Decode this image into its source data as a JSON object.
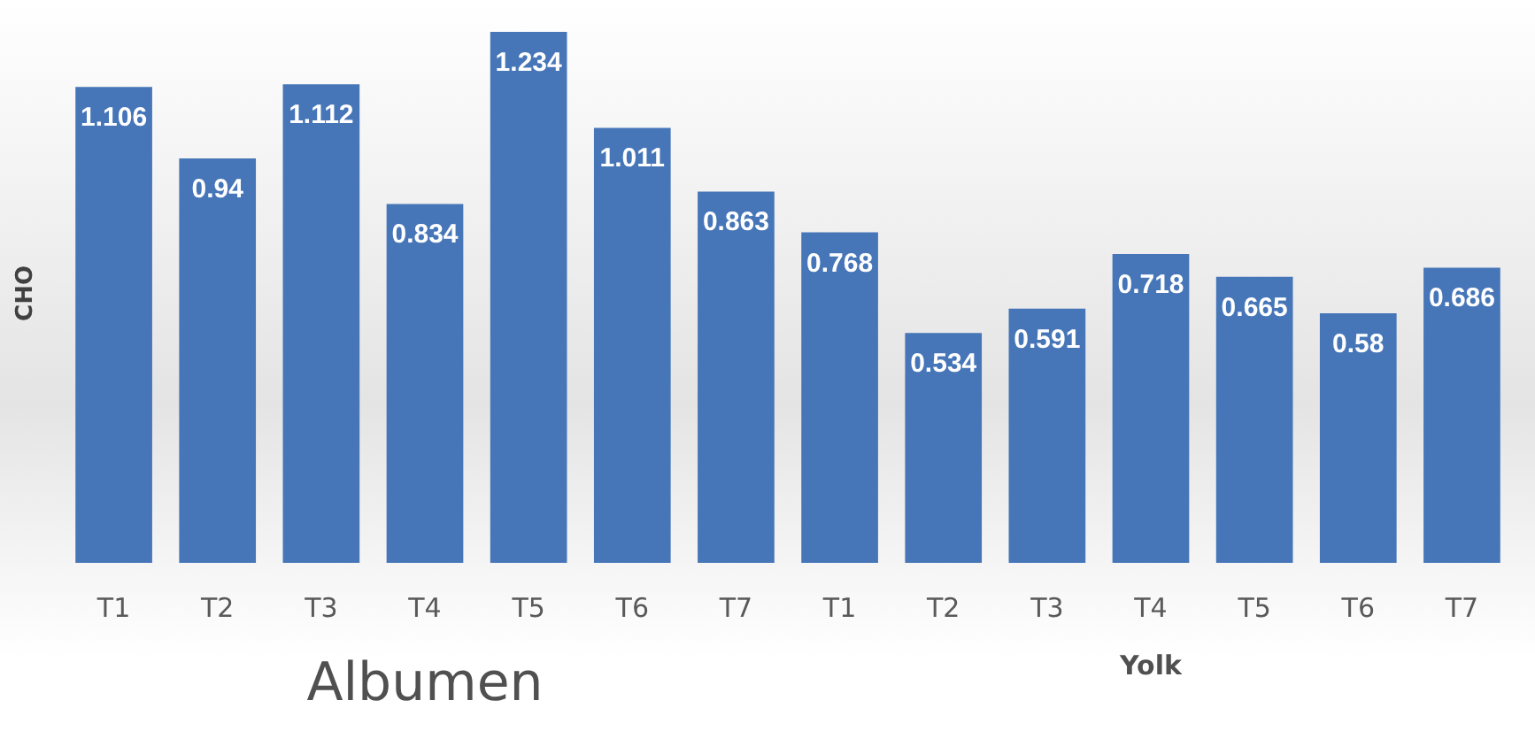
{
  "chart_data": {
    "type": "bar",
    "ylabel": "CHO",
    "categories": [
      "T1",
      "T2",
      "T3",
      "T4",
      "T5",
      "T6",
      "T7",
      "T1",
      "T2",
      "T3",
      "T4",
      "T5",
      "T6",
      "T7"
    ],
    "values": [
      1.106,
      0.94,
      1.112,
      0.834,
      1.234,
      1.011,
      0.863,
      0.768,
      0.534,
      0.591,
      0.718,
      0.665,
      0.58,
      0.686
    ],
    "color": "#4676b8",
    "data_labels": true,
    "annotations": [
      "Albumen",
      "Yolk"
    ]
  }
}
